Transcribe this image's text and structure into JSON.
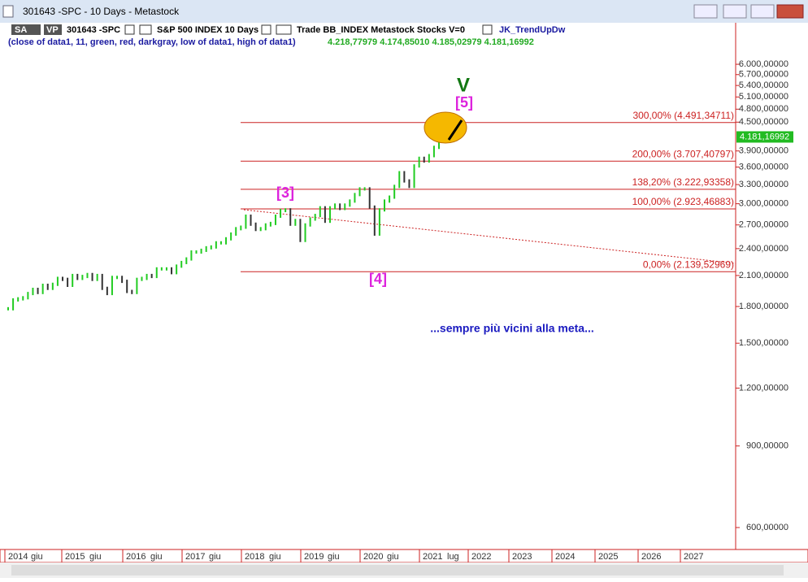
{
  "window": {
    "title": "301643 -SPC - 10 Days - Metastock"
  },
  "toolbar": {
    "sa": "SA",
    "vp": "VP",
    "symbol": "301643 -SPC",
    "name": "S&P 500 INDEX  10 Days",
    "info": "Trade  BB_INDEX  Metastock  Stocks  V=0",
    "indicator": "JK_TrendUpDw",
    "params": "(close of data1,  11,  green,  red,  darkgray,  low of data1,  high of data1)",
    "readout": "4.218,77979  4.174,85010  4.185,02979  4.181,16992"
  },
  "chart_data": {
    "type": "bar",
    "y_scale": "log",
    "ylim": [
      538,
      7375
    ],
    "yticks": [
      {
        "value": 6000,
        "label": "6.000,00000"
      },
      {
        "value": 5700,
        "label": "5.700,00000"
      },
      {
        "value": 5400,
        "label": "5.400,00000"
      },
      {
        "value": 5100,
        "label": "5.100,00000"
      },
      {
        "value": 4800,
        "label": "4.800,00000"
      },
      {
        "value": 4500,
        "label": "4.500,00000"
      },
      {
        "value": 3900,
        "label": "3.900,00000"
      },
      {
        "value": 3600,
        "label": "3.600,00000"
      },
      {
        "value": 3300,
        "label": "3.300,00000"
      },
      {
        "value": 3000,
        "label": "3.000,00000"
      },
      {
        "value": 2700,
        "label": "2.700,00000"
      },
      {
        "value": 2400,
        "label": "2.400,00000"
      },
      {
        "value": 2100,
        "label": "2.100,00000"
      },
      {
        "value": 1800,
        "label": "1.800,00000"
      },
      {
        "value": 1500,
        "label": "1.500,00000"
      },
      {
        "value": 1200,
        "label": "1.200,00000"
      },
      {
        "value": 900,
        "label": "900,00000"
      },
      {
        "value": 600,
        "label": "600,00000"
      }
    ],
    "values": [
      1780,
      1860,
      1870,
      1880,
      1920,
      1960,
      1930,
      2000,
      1970,
      2010,
      2070,
      2060,
      2000,
      2100,
      2070,
      2090,
      2110,
      2060,
      2100,
      1970,
      1920,
      2080,
      2080,
      2040,
      1940,
      1930,
      2060,
      2070,
      2100,
      2090,
      2170,
      2170,
      2170,
      2130,
      2200,
      2240,
      2280,
      2360,
      2360,
      2380,
      2410,
      2420,
      2470,
      2470,
      2520,
      2580,
      2650,
      2670,
      2820,
      2710,
      2640,
      2650,
      2700,
      2720,
      2820,
      2900,
      2910,
      2710,
      2760,
      2500,
      2700,
      2780,
      2830,
      2940,
      2750,
      2940,
      2980,
      2930,
      2980,
      3040,
      3140,
      3230,
      3230,
      2950,
      2580,
      2910,
      3040,
      3100,
      3270,
      3500,
      3360,
      3270,
      3620,
      3760,
      3710,
      3810,
      3970,
      4181
    ],
    "up_color": "#22cc22",
    "down_color": "#333333",
    "level_color": "#cc2222",
    "x_labels": [
      "2014",
      "giu",
      "2015",
      "giu",
      "2016",
      "giu",
      "2017",
      "giu",
      "2018",
      "giu",
      "2019",
      "giu",
      "2020",
      "giu",
      "2021",
      "lug",
      "2022",
      "2023",
      "2024",
      "2025",
      "2026",
      "2027"
    ],
    "levels": [
      {
        "value": 4491.34711,
        "label": "300,00% (4.491,34711)"
      },
      {
        "value": 3707.40797,
        "label": "200,00% (3.707,40797)"
      },
      {
        "value": 3222.93358,
        "label": "138,20% (3.222,93358)"
      },
      {
        "value": 2923.46883,
        "label": "100,00% (2.923,46883)"
      },
      {
        "value": 2139.52969,
        "label": "0,00% (2.139,52969)"
      }
    ],
    "last_value": {
      "value": 4181.16992,
      "label": "4.181,16992"
    },
    "annotations": [
      "V",
      "[5]",
      "[3]",
      "[4]",
      "...sempre più  vicini alla meta..."
    ]
  }
}
